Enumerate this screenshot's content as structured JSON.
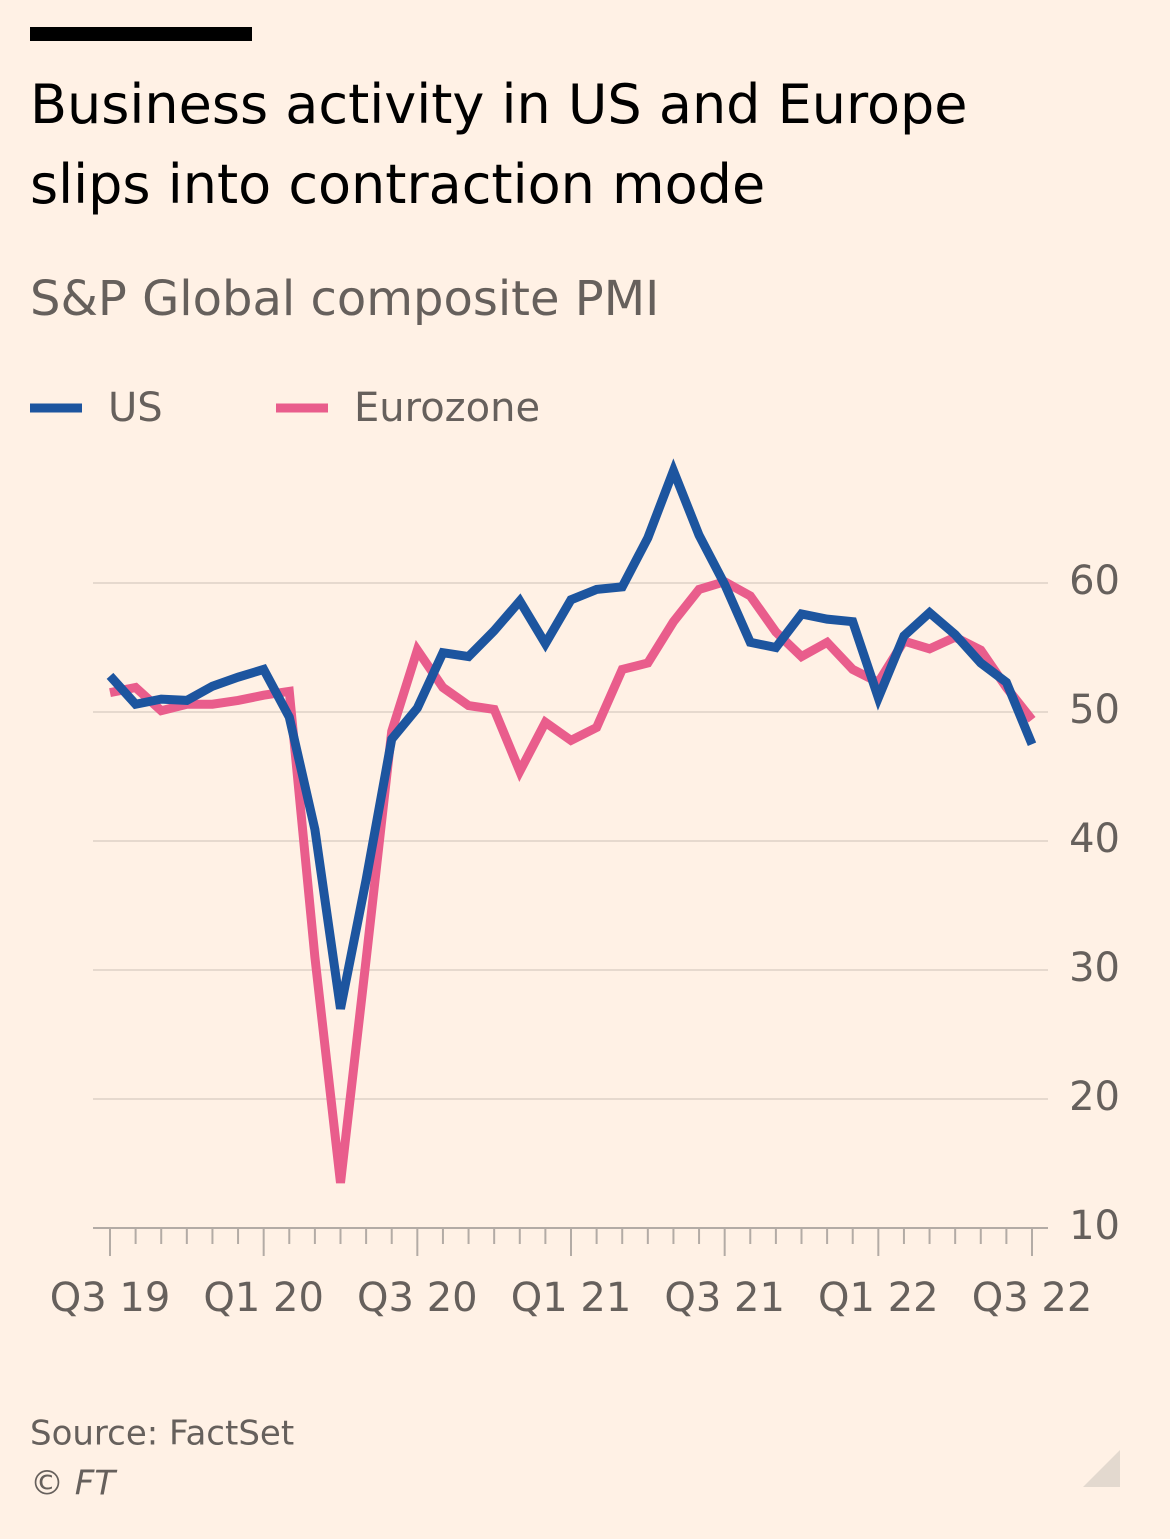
{
  "chart_data": {
    "type": "line",
    "title": "Business activity in US and Europe slips into contraction mode",
    "subtitle": "S&P Global composite PMI",
    "source": "Source: FactSet",
    "credit": "© FT",
    "categories": [
      "Q3 19",
      null,
      null,
      null,
      null,
      null,
      "Q1 20",
      null,
      null,
      null,
      null,
      null,
      "Q3 20",
      null,
      null,
      null,
      null,
      null,
      "Q1 21",
      null,
      null,
      null,
      null,
      null,
      "Q3 21",
      null,
      null,
      null,
      null,
      null,
      "Q1 22",
      null,
      null,
      null,
      null,
      null,
      "Q3 22"
    ],
    "series": [
      {
        "name": "Eurozone",
        "color": "#e95d8c",
        "values": [
          51.5,
          51.9,
          50.1,
          50.6,
          50.6,
          50.9,
          51.3,
          51.6,
          31,
          13.5,
          30.8,
          48.5,
          54.8,
          51.9,
          50.5,
          50.2,
          45.4,
          49.2,
          47.8,
          48.8,
          53.3,
          53.8,
          57.0,
          59.5,
          60.1,
          59.0,
          56.2,
          54.3,
          55.4,
          53.3,
          52.3,
          55.5,
          54.9,
          55.8,
          54.8,
          51.9,
          49.4
        ]
      },
      {
        "name": "US",
        "color": "#1d559f",
        "values": [
          52.8,
          50.6,
          51.0,
          50.9,
          52.0,
          52.7,
          53.3,
          49.6,
          40.9,
          27.0,
          37.0,
          47.9,
          50.3,
          54.6,
          54.3,
          56.3,
          58.6,
          55.3,
          58.7,
          59.5,
          59.7,
          63.5,
          68.7,
          63.7,
          59.9,
          55.4,
          55.0,
          57.6,
          57.2,
          57.0,
          51.1,
          55.9,
          57.7,
          56.0,
          53.8,
          52.3,
          47.5
        ]
      }
    ],
    "ylim": [
      10,
      70
    ],
    "yticks": [
      10,
      20,
      30,
      40,
      50,
      60
    ],
    "grid": true
  }
}
